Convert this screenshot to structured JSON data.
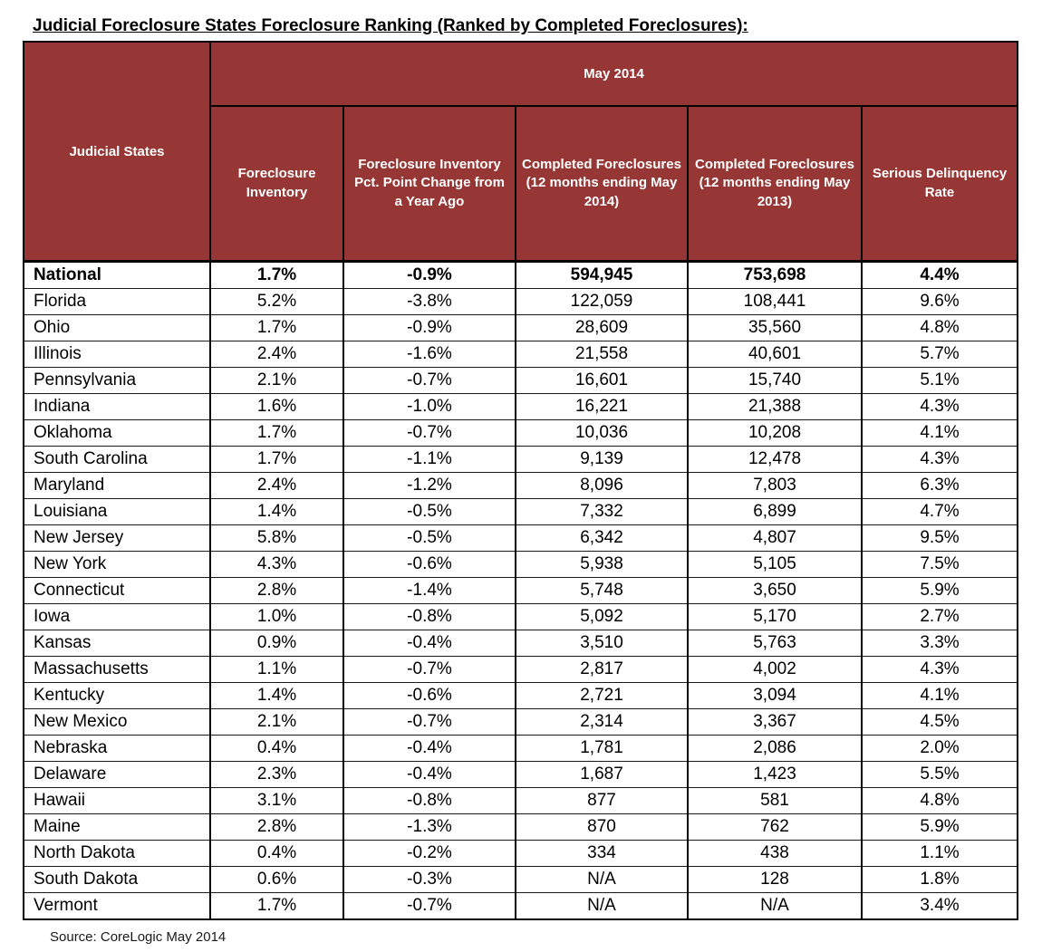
{
  "page": {
    "title": "Judicial Foreclosure States Foreclosure Ranking (Ranked by Completed Foreclosures):",
    "source": "Source: CoreLogic May 2014"
  },
  "colors": {
    "header_background": "#963735",
    "header_text": "#FFFFFF",
    "border": "#000000",
    "body_text": "#000000",
    "page_background": "#FFFFFF"
  },
  "table": {
    "row_header": "Judicial States",
    "group_header": "May 2014",
    "columns": [
      "Foreclosure Inventory",
      "Foreclosure Inventory Pct. Point Change from a Year Ago",
      "Completed Foreclosures (12 months ending May 2014)",
      "Completed Foreclosures (12 months ending May 2013)",
      "Serious Delinquency Rate"
    ]
  },
  "chart_data": {
    "type": "table",
    "title": "Judicial Foreclosure States Foreclosure Ranking (Ranked by Completed Foreclosures):",
    "group_header": "May 2014",
    "columns": [
      "Judicial States",
      "Foreclosure Inventory",
      "Foreclosure Inventory Pct. Point Change from a Year Ago",
      "Completed Foreclosures (12 months ending May 2014)",
      "Completed Foreclosures (12 months ending May 2013)",
      "Serious Delinquency Rate"
    ],
    "rows": [
      {
        "state": "National",
        "bold": true,
        "foreclosure_inventory": "1.7%",
        "inventory_pct_point_change": "-0.9%",
        "completed_2014": "594,945",
        "completed_2013": "753,698",
        "serious_delinquency_rate": "4.4%"
      },
      {
        "state": "Florida",
        "bold": false,
        "foreclosure_inventory": "5.2%",
        "inventory_pct_point_change": "-3.8%",
        "completed_2014": "122,059",
        "completed_2013": "108,441",
        "serious_delinquency_rate": "9.6%"
      },
      {
        "state": "Ohio",
        "bold": false,
        "foreclosure_inventory": "1.7%",
        "inventory_pct_point_change": "-0.9%",
        "completed_2014": "28,609",
        "completed_2013": "35,560",
        "serious_delinquency_rate": "4.8%"
      },
      {
        "state": "Illinois",
        "bold": false,
        "foreclosure_inventory": "2.4%",
        "inventory_pct_point_change": "-1.6%",
        "completed_2014": "21,558",
        "completed_2013": "40,601",
        "serious_delinquency_rate": "5.7%"
      },
      {
        "state": "Pennsylvania",
        "bold": false,
        "foreclosure_inventory": "2.1%",
        "inventory_pct_point_change": "-0.7%",
        "completed_2014": "16,601",
        "completed_2013": "15,740",
        "serious_delinquency_rate": "5.1%"
      },
      {
        "state": "Indiana",
        "bold": false,
        "foreclosure_inventory": "1.6%",
        "inventory_pct_point_change": "-1.0%",
        "completed_2014": "16,221",
        "completed_2013": "21,388",
        "serious_delinquency_rate": "4.3%"
      },
      {
        "state": "Oklahoma",
        "bold": false,
        "foreclosure_inventory": "1.7%",
        "inventory_pct_point_change": "-0.7%",
        "completed_2014": "10,036",
        "completed_2013": "10,208",
        "serious_delinquency_rate": "4.1%"
      },
      {
        "state": "South Carolina",
        "bold": false,
        "foreclosure_inventory": "1.7%",
        "inventory_pct_point_change": "-1.1%",
        "completed_2014": "9,139",
        "completed_2013": "12,478",
        "serious_delinquency_rate": "4.3%"
      },
      {
        "state": "Maryland",
        "bold": false,
        "foreclosure_inventory": "2.4%",
        "inventory_pct_point_change": "-1.2%",
        "completed_2014": "8,096",
        "completed_2013": "7,803",
        "serious_delinquency_rate": "6.3%"
      },
      {
        "state": "Louisiana",
        "bold": false,
        "foreclosure_inventory": "1.4%",
        "inventory_pct_point_change": "-0.5%",
        "completed_2014": "7,332",
        "completed_2013": "6,899",
        "serious_delinquency_rate": "4.7%"
      },
      {
        "state": "New Jersey",
        "bold": false,
        "foreclosure_inventory": "5.8%",
        "inventory_pct_point_change": "-0.5%",
        "completed_2014": "6,342",
        "completed_2013": "4,807",
        "serious_delinquency_rate": "9.5%"
      },
      {
        "state": "New York",
        "bold": false,
        "foreclosure_inventory": "4.3%",
        "inventory_pct_point_change": "-0.6%",
        "completed_2014": "5,938",
        "completed_2013": "5,105",
        "serious_delinquency_rate": "7.5%"
      },
      {
        "state": "Connecticut",
        "bold": false,
        "foreclosure_inventory": "2.8%",
        "inventory_pct_point_change": "-1.4%",
        "completed_2014": "5,748",
        "completed_2013": "3,650",
        "serious_delinquency_rate": "5.9%"
      },
      {
        "state": "Iowa",
        "bold": false,
        "foreclosure_inventory": "1.0%",
        "inventory_pct_point_change": "-0.8%",
        "completed_2014": "5,092",
        "completed_2013": "5,170",
        "serious_delinquency_rate": "2.7%"
      },
      {
        "state": "Kansas",
        "bold": false,
        "foreclosure_inventory": "0.9%",
        "inventory_pct_point_change": "-0.4%",
        "completed_2014": "3,510",
        "completed_2013": "5,763",
        "serious_delinquency_rate": "3.3%"
      },
      {
        "state": "Massachusetts",
        "bold": false,
        "foreclosure_inventory": "1.1%",
        "inventory_pct_point_change": "-0.7%",
        "completed_2014": "2,817",
        "completed_2013": "4,002",
        "serious_delinquency_rate": "4.3%"
      },
      {
        "state": "Kentucky",
        "bold": false,
        "foreclosure_inventory": "1.4%",
        "inventory_pct_point_change": "-0.6%",
        "completed_2014": "2,721",
        "completed_2013": "3,094",
        "serious_delinquency_rate": "4.1%"
      },
      {
        "state": "New Mexico",
        "bold": false,
        "foreclosure_inventory": "2.1%",
        "inventory_pct_point_change": "-0.7%",
        "completed_2014": "2,314",
        "completed_2013": "3,367",
        "serious_delinquency_rate": "4.5%"
      },
      {
        "state": "Nebraska",
        "bold": false,
        "foreclosure_inventory": "0.4%",
        "inventory_pct_point_change": "-0.4%",
        "completed_2014": "1,781",
        "completed_2013": "2,086",
        "serious_delinquency_rate": "2.0%"
      },
      {
        "state": "Delaware",
        "bold": false,
        "foreclosure_inventory": "2.3%",
        "inventory_pct_point_change": "-0.4%",
        "completed_2014": "1,687",
        "completed_2013": "1,423",
        "serious_delinquency_rate": "5.5%"
      },
      {
        "state": "Hawaii",
        "bold": false,
        "foreclosure_inventory": "3.1%",
        "inventory_pct_point_change": "-0.8%",
        "completed_2014": "877",
        "completed_2013": "581",
        "serious_delinquency_rate": "4.8%"
      },
      {
        "state": "Maine",
        "bold": false,
        "foreclosure_inventory": "2.8%",
        "inventory_pct_point_change": "-1.3%",
        "completed_2014": "870",
        "completed_2013": "762",
        "serious_delinquency_rate": "5.9%"
      },
      {
        "state": "North Dakota",
        "bold": false,
        "foreclosure_inventory": "0.4%",
        "inventory_pct_point_change": "-0.2%",
        "completed_2014": "334",
        "completed_2013": "438",
        "serious_delinquency_rate": "1.1%"
      },
      {
        "state": "South Dakota",
        "bold": false,
        "foreclosure_inventory": "0.6%",
        "inventory_pct_point_change": "-0.3%",
        "completed_2014": "N/A",
        "completed_2013": "128",
        "serious_delinquency_rate": "1.8%"
      },
      {
        "state": "Vermont",
        "bold": false,
        "foreclosure_inventory": "1.7%",
        "inventory_pct_point_change": "-0.7%",
        "completed_2014": "N/A",
        "completed_2013": "N/A",
        "serious_delinquency_rate": "3.4%"
      }
    ]
  }
}
